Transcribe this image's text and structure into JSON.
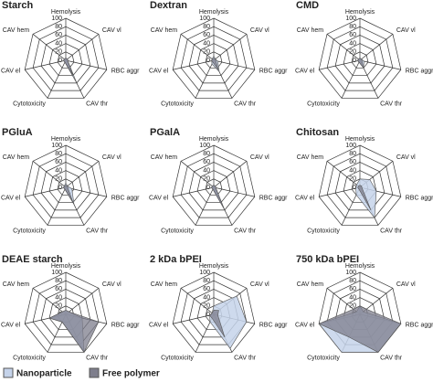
{
  "chart_data": [
    {
      "type": "radar",
      "title": "Starch",
      "axes": [
        "Hemolysis",
        "CAV vl",
        "RBC aggr",
        "CAV thr",
        "Cytotoxicity",
        "CAV el",
        "CAV hem"
      ],
      "rlim": [
        0,
        100
      ],
      "rticks": [
        0,
        20,
        40,
        60,
        80,
        100
      ],
      "series": [
        {
          "name": "Nanoparticle",
          "color": "#c5d3ea",
          "values": [
            5,
            5,
            5,
            60,
            5,
            5,
            5
          ]
        },
        {
          "name": "Free polymer",
          "color": "#7e7e8c",
          "values": [
            5,
            5,
            5,
            40,
            5,
            5,
            5
          ]
        }
      ]
    },
    {
      "type": "radar",
      "title": "Dextran",
      "axes": [
        "Hemolysis",
        "CAV vl",
        "RBC aggr",
        "CAV thr",
        "Cytotoxicity",
        "CAV el",
        "CAV hem"
      ],
      "rlim": [
        0,
        100
      ],
      "rticks": [
        0,
        20,
        40,
        60,
        80,
        100
      ],
      "series": [
        {
          "name": "Nanoparticle",
          "color": "#c5d3ea",
          "values": [
            10,
            5,
            10,
            30,
            10,
            5,
            5
          ]
        },
        {
          "name": "Free polymer",
          "color": "#7e7e8c",
          "values": [
            5,
            5,
            5,
            25,
            5,
            5,
            5
          ]
        }
      ]
    },
    {
      "type": "radar",
      "title": "CMD",
      "axes": [
        "Hemolysis",
        "CAV vl",
        "RBC aggr",
        "CAV thr",
        "Cytotoxicity",
        "CAV el",
        "CAV hem"
      ],
      "rlim": [
        0,
        100
      ],
      "rticks": [
        0,
        20,
        40,
        60,
        80,
        100
      ],
      "series": [
        {
          "name": "Nanoparticle",
          "color": "#c5d3ea",
          "values": [
            5,
            5,
            10,
            20,
            5,
            5,
            5
          ]
        },
        {
          "name": "Free polymer",
          "color": "#7e7e8c",
          "values": [
            5,
            5,
            5,
            20,
            5,
            5,
            5
          ]
        }
      ]
    },
    {
      "type": "radar",
      "title": "PGluA",
      "axes": [
        "Hemolysis",
        "CAV vl",
        "RBC aggr",
        "CAV thr",
        "Cytotoxicity",
        "CAV el",
        "CAV hem"
      ],
      "rlim": [
        0,
        100
      ],
      "rticks": [
        0,
        20,
        40,
        60,
        80,
        100
      ],
      "series": [
        {
          "name": "Nanoparticle",
          "color": "#c5d3ea",
          "values": [
            10,
            5,
            15,
            45,
            5,
            5,
            5
          ]
        },
        {
          "name": "Free polymer",
          "color": "#7e7e8c",
          "values": [
            5,
            5,
            5,
            40,
            5,
            5,
            5
          ]
        }
      ]
    },
    {
      "type": "radar",
      "title": "PGalA",
      "axes": [
        "Hemolysis",
        "CAV vl",
        "RBC aggr",
        "CAV thr",
        "Cytotoxicity",
        "CAV el",
        "CAV hem"
      ],
      "rlim": [
        0,
        100
      ],
      "rticks": [
        0,
        20,
        40,
        60,
        80,
        100
      ],
      "series": [
        {
          "name": "Nanoparticle",
          "color": "#c5d3ea",
          "values": [
            5,
            5,
            5,
            50,
            5,
            5,
            5
          ]
        },
        {
          "name": "Free polymer",
          "color": "#7e7e8c",
          "values": [
            5,
            5,
            5,
            60,
            5,
            5,
            5
          ]
        }
      ]
    },
    {
      "type": "radar",
      "title": "Chitosan",
      "axes": [
        "Hemolysis",
        "CAV vl",
        "RBC aggr",
        "CAV thr",
        "Cytotoxicity",
        "CAV el",
        "CAV hem"
      ],
      "rlim": [
        0,
        100
      ],
      "rticks": [
        0,
        20,
        40,
        60,
        80,
        100
      ],
      "series": [
        {
          "name": "Nanoparticle",
          "color": "#c5d3ea",
          "values": [
            20,
            30,
            40,
            80,
            20,
            10,
            10
          ]
        },
        {
          "name": "Free polymer",
          "color": "#7e7e8c",
          "values": [
            5,
            5,
            5,
            60,
            5,
            5,
            5
          ]
        }
      ]
    },
    {
      "type": "radar",
      "title": "DEAE starch",
      "axes": [
        "Hemolysis",
        "CAV vl",
        "RBC aggr",
        "CAV thr",
        "Cytotoxicity",
        "CAV el",
        "CAV hem"
      ],
      "rlim": [
        0,
        100
      ],
      "rticks": [
        0,
        20,
        40,
        60,
        80,
        100
      ],
      "series": [
        {
          "name": "Nanoparticle",
          "color": "#c5d3ea",
          "values": [
            10,
            10,
            40,
            100,
            20,
            40,
            10
          ]
        },
        {
          "name": "Free polymer",
          "color": "#7e7e8c",
          "values": [
            10,
            10,
            80,
            100,
            20,
            40,
            10
          ]
        }
      ]
    },
    {
      "type": "radar",
      "title": "2 kDa bPEI",
      "axes": [
        "Hemolysis",
        "CAV vl",
        "RBC aggr",
        "CAV thr",
        "Cytotoxicity",
        "CAV el",
        "CAV hem"
      ],
      "rlim": [
        0,
        100
      ],
      "rticks": [
        0,
        20,
        40,
        60,
        80,
        100
      ],
      "series": [
        {
          "name": "Nanoparticle",
          "color": "#c5d3ea",
          "values": [
            20,
            70,
            80,
            90,
            20,
            10,
            5
          ]
        },
        {
          "name": "Free polymer",
          "color": "#7e7e8c",
          "values": [
            10,
            15,
            10,
            60,
            10,
            10,
            5
          ]
        }
      ]
    },
    {
      "type": "radar",
      "title": "750 kDa bPEI",
      "axes": [
        "Hemolysis",
        "CAV vl",
        "RBC aggr",
        "CAV thr",
        "Cytotoxicity",
        "CAV el",
        "CAV hem"
      ],
      "rlim": [
        0,
        100
      ],
      "rticks": [
        0,
        20,
        40,
        60,
        80,
        100
      ],
      "series": [
        {
          "name": "Nanoparticle",
          "color": "#c5d3ea",
          "values": [
            20,
            10,
            100,
            100,
            100,
            100,
            10
          ]
        },
        {
          "name": "Free polymer",
          "color": "#7e7e8c",
          "values": [
            20,
            20,
            100,
            100,
            60,
            100,
            20
          ]
        }
      ]
    }
  ]
}
